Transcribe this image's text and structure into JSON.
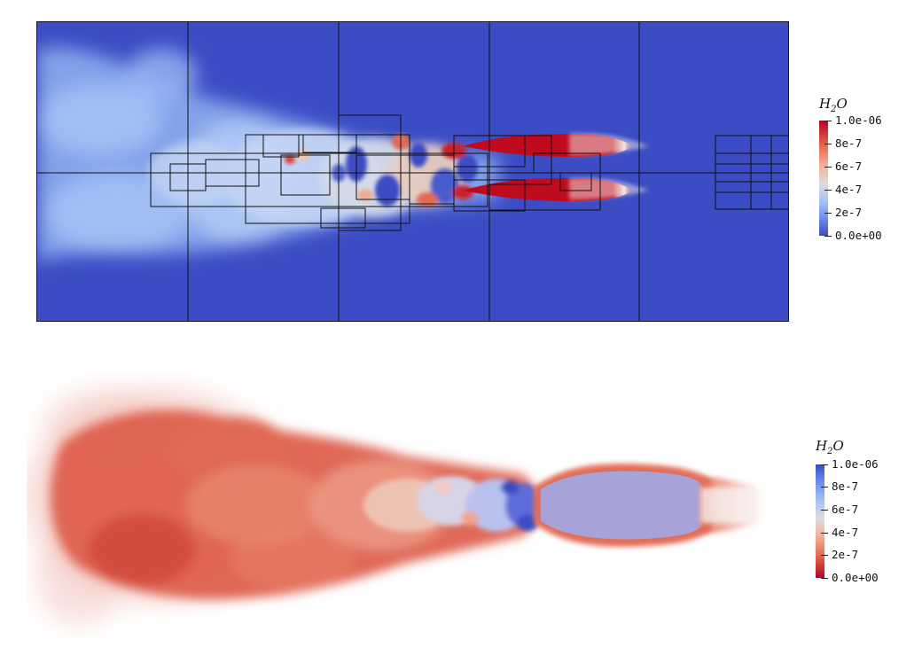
{
  "slice_panel": {
    "background_color": "#3c4cc4",
    "jet_color": "#c00a1e"
  },
  "volume_panel": {
    "plume_color": "#d9513f",
    "core_color": "#a7a3d8"
  },
  "legend_top": {
    "title_base": "H",
    "title_sub": "2",
    "title_end": "O",
    "ticks": [
      "1.0e-06",
      "8e-7",
      "6e-7",
      "4e-7",
      "2e-7",
      "0.0e+00"
    ],
    "colormap": "coolwarm"
  },
  "legend_bottom": {
    "title_base": "H",
    "title_sub": "2",
    "title_end": "O",
    "ticks": [
      "1.0e-06",
      "8e-7",
      "6e-7",
      "4e-7",
      "2e-7",
      "0.0e+00"
    ],
    "colormap": "coolwarm-reversed"
  }
}
